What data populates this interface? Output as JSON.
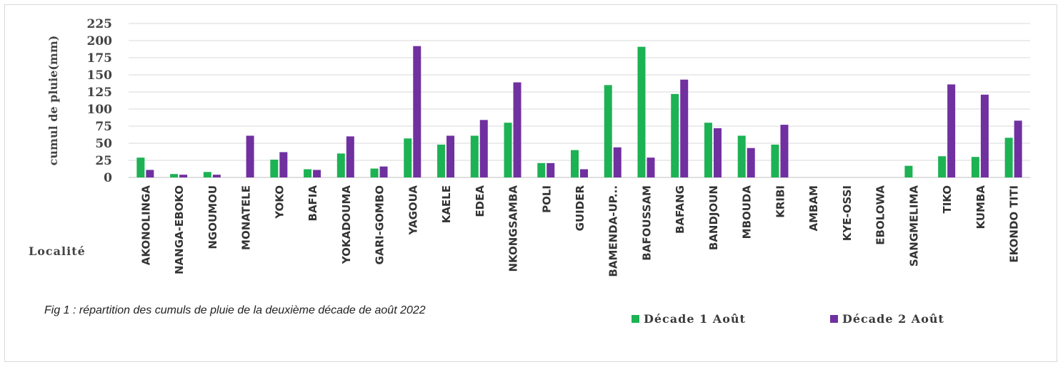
{
  "chart_data": {
    "type": "bar",
    "ylabel": "cumul de pluie(mm)",
    "xlabel": "Localité",
    "ylim": [
      0,
      225
    ],
    "yticks": [
      0,
      25,
      50,
      75,
      100,
      125,
      150,
      175,
      200,
      225
    ],
    "grid": true,
    "legend_position": "bottom-right",
    "categories": [
      "AKONOLINGA",
      "NANGA-EBOKO",
      "NGOUMOU",
      "MONATELE",
      "YOKO",
      "BAFIA",
      "YOKADOUMA",
      "GARI-GOMBO",
      "YAGOUA",
      "KAELE",
      "EDEA",
      "NKONGSAMBA",
      "POLI",
      "GUIDER",
      "BAMENDA-UP...",
      "BAFOUSSAM",
      "BAFANG",
      "BANDJOUN",
      "MBOUDA",
      "KRIBI",
      "AMBAM",
      "KYE-OSSI",
      "EBOLOWA",
      "SANGMELIMA",
      "TIKO",
      "KUMBA",
      "EKONDO TITI"
    ],
    "series": [
      {
        "name": "Décade 1 Août",
        "color": "#1db254",
        "values": [
          29,
          5,
          8,
          0,
          26,
          12,
          35,
          13,
          57,
          48,
          61,
          80,
          21,
          40,
          135,
          191,
          122,
          80,
          61,
          48,
          0,
          0,
          0,
          17,
          31,
          30,
          58
        ]
      },
      {
        "name": "Décade 2 Août",
        "color": "#7030a0",
        "values": [
          11,
          4,
          4,
          61,
          37,
          11,
          60,
          16,
          192,
          61,
          84,
          139,
          21,
          12,
          44,
          29,
          143,
          72,
          43,
          77,
          0,
          0,
          0,
          0,
          136,
          121,
          83
        ]
      }
    ]
  },
  "caption": "Fig 1 : répartition des cumuls de pluie de la deuxième décade de août 2022"
}
